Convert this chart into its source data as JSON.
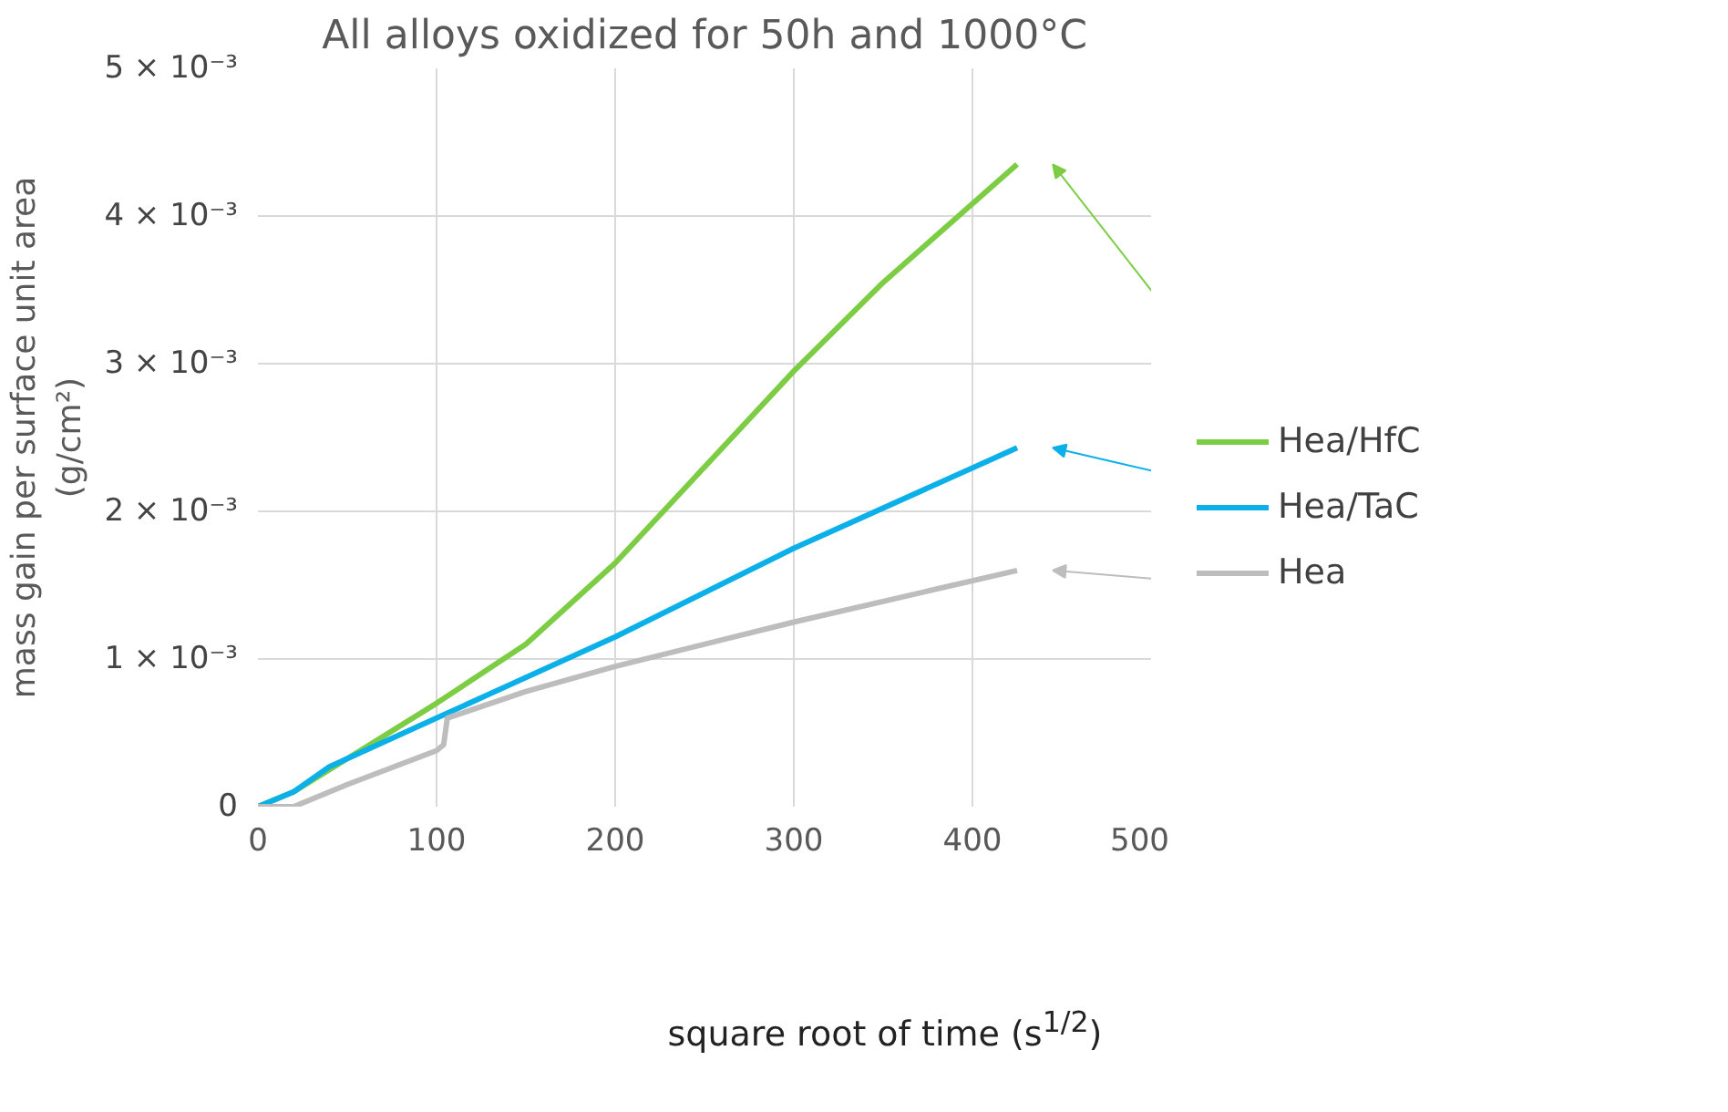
{
  "chart_data": {
    "type": "line",
    "title": "All alloys oxidized for 50h and 1000°C",
    "xlabel": "square root of time (s$^{1/2}$)",
    "ylabel": "mass gain per surface unit area\n(g/cm²)",
    "xlim": [
      0,
      500
    ],
    "xticks": [
      0,
      100,
      200,
      300,
      400,
      500
    ],
    "ylim": [
      0,
      0.005
    ],
    "yticks": [
      {
        "value": 0,
        "label": "0"
      },
      {
        "value": 0.001,
        "label": "1 × 10⁻³"
      },
      {
        "value": 0.002,
        "label": "2 × 10⁻³"
      },
      {
        "value": 0.003,
        "label": "3 × 10⁻³"
      },
      {
        "value": 0.004,
        "label": "4 × 10⁻³"
      },
      {
        "value": 0.005,
        "label": "5 × 10⁻³"
      }
    ],
    "grid": true,
    "legend": "right",
    "marker": "none",
    "line_style": "solid",
    "series": [
      {
        "name": "Hea/HfC",
        "color": "#7ccc44",
        "x": [
          0,
          20,
          40,
          100,
          150,
          200,
          250,
          300,
          350,
          425
        ],
        "values": [
          0,
          0.0001,
          0.00025,
          0.0007,
          0.0011,
          0.00165,
          0.0023,
          0.00295,
          0.00355,
          0.00435
        ]
      },
      {
        "name": "Hea/TaC",
        "color": "#0bb0e8",
        "x": [
          0,
          20,
          40,
          100,
          200,
          300,
          425
        ],
        "values": [
          0,
          0.0001,
          0.00027,
          0.0006,
          0.00115,
          0.00175,
          0.00243
        ]
      },
      {
        "name": "Hea",
        "color": "#bdbdbd",
        "x": [
          0,
          20,
          50,
          100,
          104,
          106,
          150,
          200,
          300,
          425
        ],
        "values": [
          0,
          0,
          0.00015,
          0.00038,
          0.00042,
          0.0006,
          0.00078,
          0.00095,
          0.00125,
          0.0016
        ]
      }
    ]
  }
}
